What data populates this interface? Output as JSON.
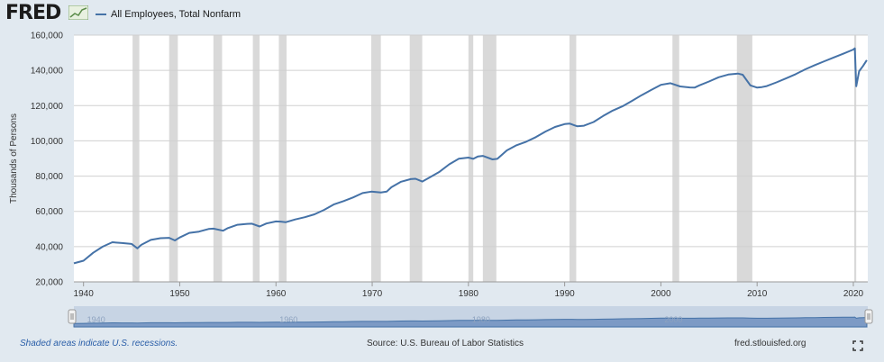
{
  "header": {
    "logo_text": "FRED",
    "series_label": "All Employees, Total Nonfarm"
  },
  "footer": {
    "recession_note": "Shaded areas indicate U.S. recessions.",
    "source": "Source: U.S. Bureau of Labor Statistics",
    "site": "fred.stlouisfed.org"
  },
  "colors": {
    "line": "#4572a7",
    "recession": "#d9d9d9",
    "background": "#e1e9f0",
    "plot": "#ffffff"
  },
  "chart_data": {
    "type": "line",
    "title": "",
    "xlabel": "",
    "ylabel": "Thousands of Persons",
    "xlim": [
      1939,
      2021.5
    ],
    "ylim": [
      20000,
      160000
    ],
    "yticks": [
      20000,
      40000,
      60000,
      80000,
      100000,
      120000,
      140000,
      160000
    ],
    "ytick_labels": [
      "20,000",
      "40,000",
      "60,000",
      "80,000",
      "100,000",
      "120,000",
      "140,000",
      "160,000"
    ],
    "xticks": [
      1940,
      1950,
      1960,
      1970,
      1980,
      1990,
      2000,
      2010,
      2020
    ],
    "xtick_labels": [
      "1940",
      "1950",
      "1960",
      "1970",
      "1980",
      "1990",
      "2000",
      "2010",
      "2020"
    ],
    "navigator_labels": [
      "1940",
      "1960",
      "1980",
      "2000"
    ],
    "grid": "horizontal",
    "legend": "top-left",
    "recessions": [
      [
        1945.1,
        1945.8
      ],
      [
        1948.9,
        1949.8
      ],
      [
        1953.5,
        1954.4
      ],
      [
        1957.6,
        1958.3
      ],
      [
        1960.3,
        1961.1
      ],
      [
        1969.9,
        1970.9
      ],
      [
        1973.9,
        1975.2
      ],
      [
        1980.0,
        1980.5
      ],
      [
        1981.5,
        1982.9
      ],
      [
        1990.5,
        1991.2
      ],
      [
        2001.2,
        2001.9
      ],
      [
        2007.9,
        2009.5
      ],
      [
        2020.1,
        2020.3
      ]
    ],
    "series": [
      {
        "name": "All Employees, Total Nonfarm",
        "x": [
          1939.0,
          1940.0,
          1941.0,
          1942.0,
          1943.0,
          1944.0,
          1945.0,
          1945.6,
          1946.0,
          1947.0,
          1948.0,
          1948.9,
          1949.5,
          1950.0,
          1951.0,
          1952.0,
          1953.0,
          1953.5,
          1954.5,
          1955.0,
          1956.0,
          1957.0,
          1957.5,
          1958.3,
          1959.0,
          1960.0,
          1960.5,
          1961.0,
          1962.0,
          1963.0,
          1964.0,
          1965.0,
          1966.0,
          1967.0,
          1968.0,
          1969.0,
          1969.9,
          1970.9,
          1971.5,
          1972.0,
          1973.0,
          1974.0,
          1974.5,
          1975.2,
          1976.0,
          1977.0,
          1978.0,
          1979.0,
          1980.0,
          1980.5,
          1981.0,
          1981.5,
          1982.5,
          1983.0,
          1984.0,
          1985.0,
          1986.0,
          1987.0,
          1988.0,
          1989.0,
          1990.0,
          1990.5,
          1991.3,
          1992.0,
          1993.0,
          1994.0,
          1995.0,
          1996.0,
          1997.0,
          1998.0,
          1999.0,
          2000.0,
          2001.0,
          2002.0,
          2003.0,
          2003.5,
          2004.0,
          2005.0,
          2006.0,
          2007.0,
          2008.0,
          2008.5,
          2009.3,
          2010.0,
          2010.5,
          2011.0,
          2012.0,
          2013.0,
          2014.0,
          2015.0,
          2016.0,
          2017.0,
          2018.0,
          2019.0,
          2020.0,
          2020.15,
          2020.3,
          2020.6,
          2021.0,
          2021.4
        ],
        "values": [
          30500,
          32000,
          36500,
          40000,
          42500,
          42000,
          41500,
          39000,
          41000,
          43800,
          44800,
          45000,
          43500,
          45200,
          47800,
          48500,
          50000,
          50200,
          49000,
          50500,
          52400,
          52900,
          53000,
          51400,
          53100,
          54300,
          54200,
          53800,
          55400,
          56700,
          58300,
          60800,
          63900,
          65800,
          67900,
          70400,
          71200,
          70700,
          71200,
          73700,
          76800,
          78300,
          78500,
          76900,
          79300,
          82500,
          86700,
          89900,
          90500,
          89800,
          91200,
          91500,
          89500,
          89800,
          94600,
          97500,
          99500,
          102100,
          105300,
          107900,
          109500,
          109800,
          108300,
          108600,
          110700,
          114100,
          117200,
          119600,
          122700,
          125900,
          128900,
          131800,
          132700,
          130900,
          130300,
          130200,
          131500,
          133700,
          136100,
          137600,
          138200,
          137500,
          131500,
          130200,
          130500,
          131100,
          133200,
          135400,
          137800,
          140600,
          143000,
          145200,
          147400,
          149600,
          151800,
          152500,
          131000,
          139500,
          142500,
          145800
        ]
      }
    ]
  }
}
